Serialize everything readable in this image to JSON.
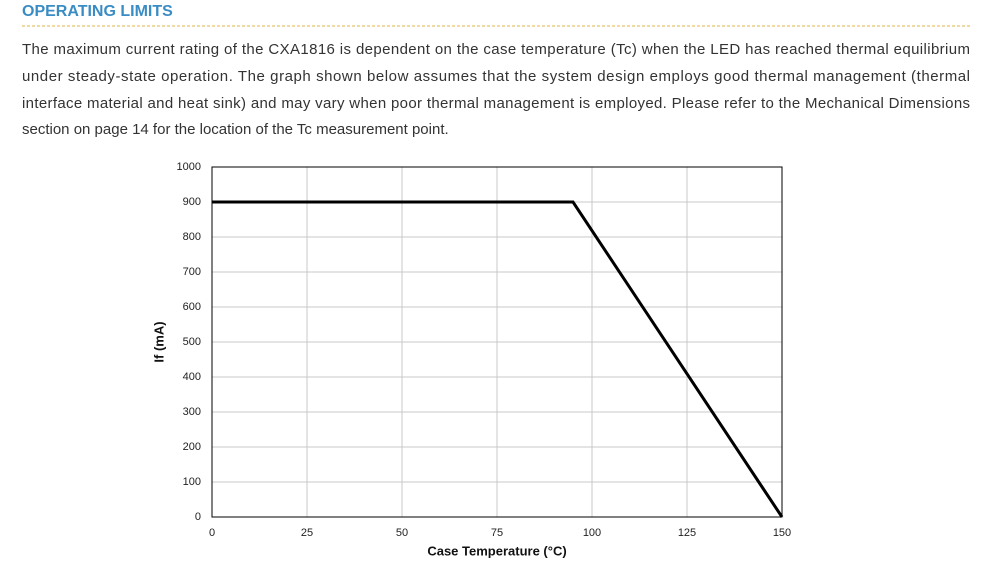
{
  "header": {
    "title": "OPERATING LIMITS"
  },
  "paragraph": {
    "lines": [
      "The maximum current rating of the CXA1816 is dependent on the case temperature (Tc) when the LED has reached thermal equilibrium",
      "under steady-state operation. The graph shown below assumes that the system design employs good thermal management (thermal",
      "interface material and heat sink) and may vary when poor thermal management is employed. Please refer to the Mechanical Dimensions",
      "section on page 14 for the location of the Tc measurement point."
    ]
  },
  "chart_data": {
    "type": "line",
    "x_label": "Case Temperature (°C)",
    "y_label": "If (mA)",
    "x": [
      0,
      95,
      150
    ],
    "series": [
      {
        "name": "If",
        "color": "#000000",
        "values": [
          900,
          900,
          0
        ]
      }
    ],
    "xlim": [
      0,
      150
    ],
    "xticks": [
      0,
      25,
      50,
      75,
      100,
      125,
      150
    ],
    "ylim": [
      0,
      1000
    ],
    "yticks": [
      0,
      100,
      200,
      300,
      400,
      500,
      600,
      700,
      800,
      900,
      1000
    ],
    "grid": true
  }
}
